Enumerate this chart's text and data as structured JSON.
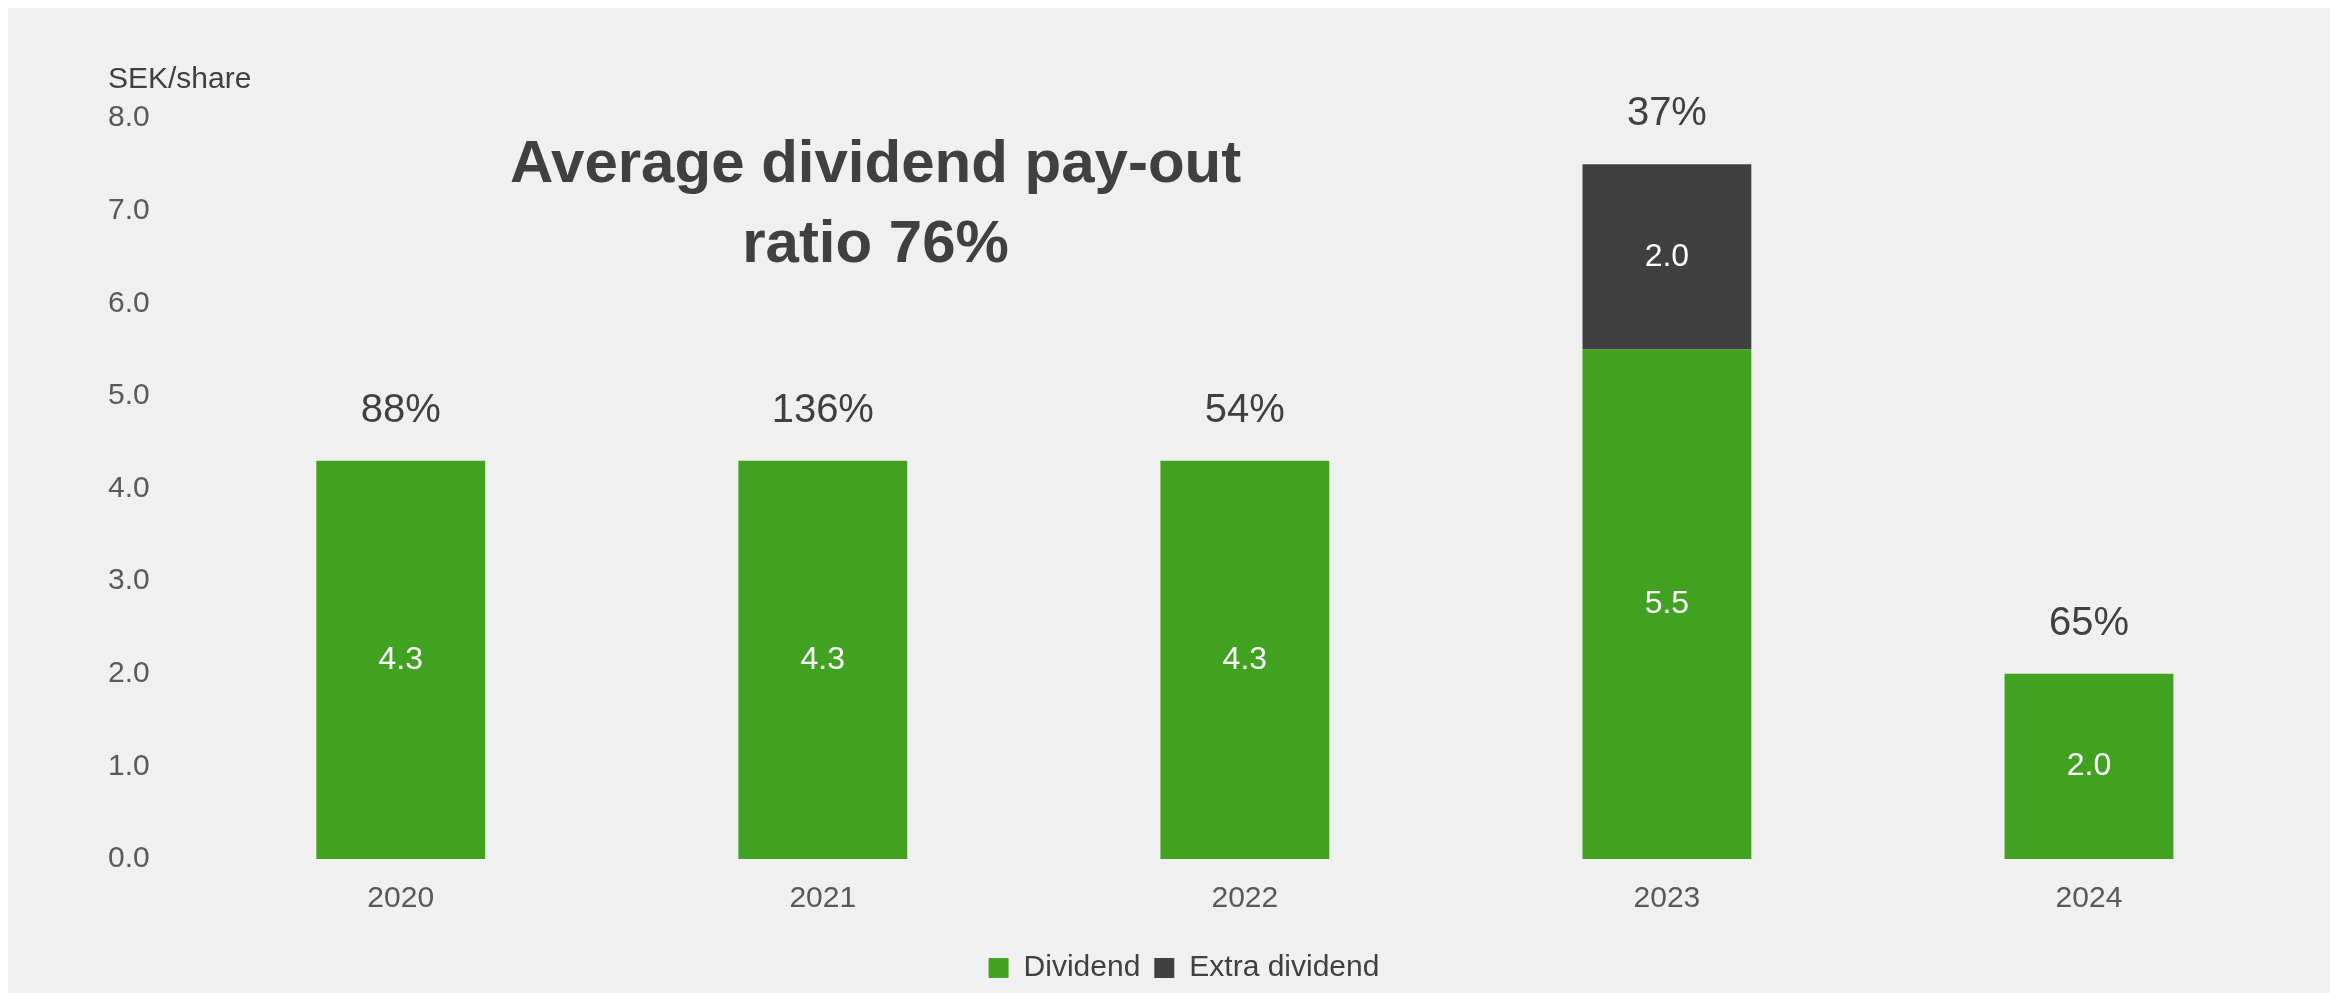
{
  "chart_data": {
    "type": "bar",
    "title": "Average dividend pay-out ratio 76%",
    "ylabel": "SEK/share",
    "categories": [
      "2020",
      "2021",
      "2022",
      "2023",
      "2024"
    ],
    "series": [
      {
        "name": "Dividend",
        "color": "#41a121",
        "values": [
          4.3,
          4.3,
          4.3,
          5.5,
          2.0
        ],
        "value_labels": [
          "4.3",
          "4.3",
          "4.3",
          "5.5",
          "2.0"
        ]
      },
      {
        "name": "Extra dividend",
        "color": "#404040",
        "values": [
          null,
          null,
          null,
          2.0,
          null
        ],
        "value_labels": [
          null,
          null,
          null,
          "2.0",
          null
        ]
      }
    ],
    "stacked": true,
    "ylim": [
      0,
      8
    ],
    "yticks": [
      {
        "value": 0,
        "label": "0.0"
      },
      {
        "value": 1,
        "label": "1.0"
      },
      {
        "value": 2,
        "label": "2.0"
      },
      {
        "value": 3,
        "label": "3.0"
      },
      {
        "value": 4,
        "label": "4.0"
      },
      {
        "value": 5,
        "label": "5.0"
      },
      {
        "value": 6,
        "label": "6.0"
      },
      {
        "value": 7,
        "label": "7.0"
      },
      {
        "value": 8,
        "label": "8.0"
      }
    ],
    "grid": false,
    "legend": "bottom",
    "annotations": [
      {
        "text": "88%",
        "x": "2020",
        "y": 4.3
      },
      {
        "text": "136%",
        "x": "2021",
        "y": 4.3
      },
      {
        "text": "54%",
        "x": "2022",
        "y": 4.3
      },
      {
        "text": "37%",
        "x": "2023",
        "y": 7.5
      },
      {
        "text": "65%",
        "x": "2024",
        "y": 2.0
      }
    ]
  }
}
